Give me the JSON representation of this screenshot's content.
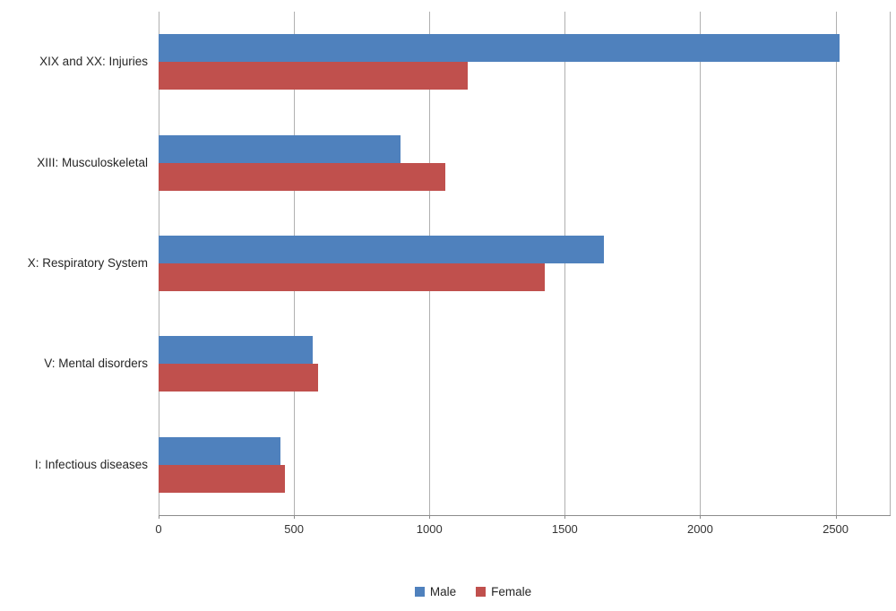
{
  "chart_data": {
    "type": "bar",
    "orientation": "horizontal",
    "title": "",
    "xlabel": "",
    "ylabel": "",
    "categories": [
      "XIX and XX: Injuries",
      "XIII: Musculoskeletal",
      "X: Respiratory System",
      "V: Mental disorders",
      "I: Infectious diseases"
    ],
    "series": [
      {
        "name": "Male",
        "color": "#4F81BD",
        "values": [
          2515,
          895,
          1645,
          570,
          450
        ]
      },
      {
        "name": "Female",
        "color": "#C0504D",
        "values": [
          1140,
          1060,
          1425,
          590,
          465
        ]
      }
    ],
    "xlim": [
      0,
      2700
    ],
    "x_ticks": [
      0,
      500,
      1000,
      1500,
      2000,
      2500
    ],
    "x_tick_labels": [
      "0",
      "500",
      "1000",
      "1500",
      "2000",
      "2500"
    ],
    "grid": true,
    "legend_position": "bottom"
  },
  "colors": {
    "gridline": "#b0b0b0",
    "axis_line": "#8c8c8c",
    "text": "#262626",
    "background": "#ffffff"
  }
}
